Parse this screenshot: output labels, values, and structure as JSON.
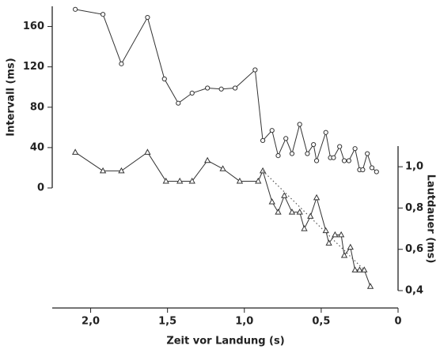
{
  "chart_data": {
    "type": "line",
    "x_label": "Zeit vor Landung (s)",
    "y_label": "Intervall (ms)",
    "y2_label": "Lautdauer (ms)",
    "xlim": [
      2.25,
      0
    ],
    "xticks": [
      {
        "value": 2,
        "label": "2,0"
      },
      {
        "value": 1.5,
        "label": "1,5"
      },
      {
        "value": 1,
        "label": "1,0"
      },
      {
        "value": 0.5,
        "label": "0,5"
      },
      {
        "value": 0,
        "label": "0"
      }
    ],
    "ylim": [
      0,
      180
    ],
    "yticks": [
      0,
      40,
      80,
      120,
      160
    ],
    "y2lim": [
      0.4,
      1.1
    ],
    "y2ticks": [
      {
        "value": 0.4,
        "label": "0,4"
      },
      {
        "value": 0.6,
        "label": "0,6"
      },
      {
        "value": 0.8,
        "label": "0,8"
      },
      {
        "value": 1.0,
        "label": "1,0"
      }
    ],
    "series": [
      {
        "marker": "circle",
        "color": "#333333",
        "x": [
          2.1,
          1.92,
          1.8,
          1.63,
          1.52,
          1.43,
          1.34,
          1.24,
          1.15,
          1.06,
          0.93,
          0.88,
          0.82,
          0.78,
          0.73,
          0.69,
          0.64,
          0.59,
          0.55,
          0.53,
          0.47,
          0.44,
          0.42,
          0.38,
          0.35,
          0.32,
          0.28,
          0.25,
          0.23,
          0.2,
          0.17,
          0.14
        ],
        "values": [
          177,
          172,
          123,
          169,
          108,
          84,
          94,
          99,
          98,
          99,
          117,
          47,
          57,
          32,
          49,
          34,
          63,
          34,
          43,
          27,
          55,
          30,
          30,
          41,
          27,
          27,
          39,
          18,
          18,
          34,
          20,
          16
        ]
      },
      {
        "marker": "triangle",
        "color": "#333333",
        "axis": "y2",
        "x": [
          2.1,
          1.92,
          1.8,
          1.63,
          1.51,
          1.42,
          1.34,
          1.24,
          1.14,
          1.03,
          0.91,
          0.88,
          0.82,
          0.78,
          0.74,
          0.69,
          0.64,
          0.61,
          0.57,
          0.53,
          0.47,
          0.45,
          0.41,
          0.37,
          0.35,
          0.31,
          0.28,
          0.25,
          0.22,
          0.18
        ],
        "values": [
          1.07,
          0.98,
          0.98,
          1.07,
          0.93,
          0.93,
          0.93,
          1.03,
          0.99,
          0.93,
          0.93,
          0.98,
          0.83,
          0.78,
          0.86,
          0.78,
          0.78,
          0.7,
          0.76,
          0.85,
          0.69,
          0.63,
          0.67,
          0.67,
          0.57,
          0.61,
          0.5,
          0.5,
          0.5,
          0.42
        ]
      },
      {
        "marker": "none",
        "dash": "dotted",
        "color": "#555555",
        "axis": "y2",
        "x": [
          0.88,
          0.22
        ],
        "values": [
          0.98,
          0.5
        ]
      }
    ]
  }
}
